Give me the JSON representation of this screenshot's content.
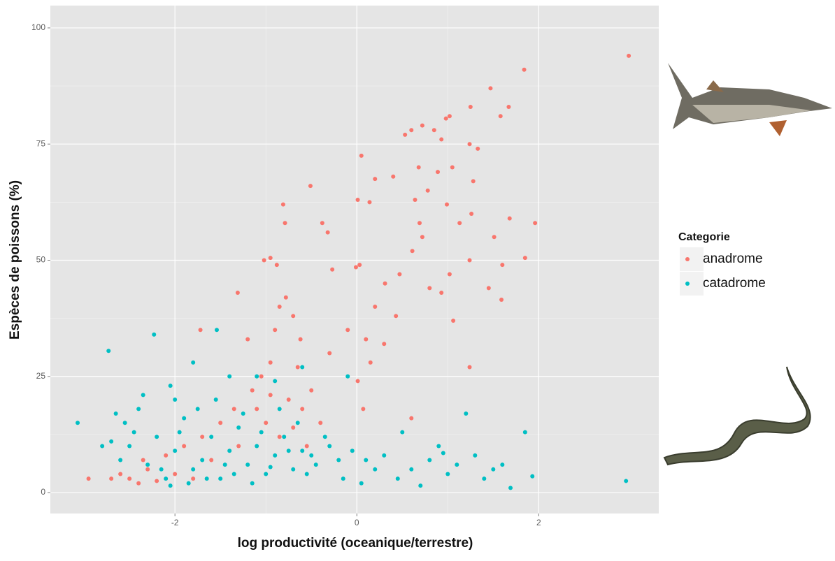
{
  "chart_data": {
    "type": "scatter",
    "x_label": "log productivité (oceanique/terrestre)",
    "y_label": "Espèces de poissons (%)",
    "legend_title": "Categorie",
    "legend_position": "right",
    "grid": true,
    "xlim": [
      -3.37,
      3.32
    ],
    "ylim": [
      -4.5,
      104.8
    ],
    "xticks": [
      -2,
      0,
      2
    ],
    "yticks": [
      0,
      25,
      50,
      75,
      100
    ],
    "series": [
      {
        "name": "anadrome",
        "color": "#F8766D",
        "x": [
          2.99,
          1.84,
          1.47,
          1.58,
          1.67,
          1.25,
          1.02,
          0.98,
          0.6,
          0.72,
          0.53,
          0.85,
          1.24,
          1.33,
          0.93,
          0.05,
          0.68,
          0.89,
          1.05,
          1.28,
          0.4,
          0.2,
          0.78,
          0.99,
          0.64,
          1.26,
          1.13,
          0.69,
          1.96,
          1.68,
          1.51,
          0.72,
          0.61,
          1.24,
          1.85,
          1.6,
          0.03,
          -0.01,
          -0.51,
          -0.81,
          -0.79,
          -0.38,
          -0.32,
          -0.95,
          -1.02,
          -0.88,
          -0.27,
          0.01,
          0.14,
          0.47,
          0.31,
          0.8,
          1.02,
          1.45,
          1.59,
          0.93,
          0.2,
          0.43,
          1.06,
          0.1,
          -0.1,
          -0.3,
          0.15,
          0.3,
          0.01,
          1.24,
          0.07,
          0.6,
          -0.62,
          -0.7,
          -0.78,
          -0.85,
          -0.9,
          -1.31,
          -1.2,
          -1.72,
          -0.95,
          -1.05,
          -1.15,
          -0.75,
          -0.6,
          -0.5,
          -1.35,
          -1.0,
          -0.85,
          -0.7,
          -1.5,
          -1.7,
          -1.9,
          -2.1,
          -2.3,
          -2.5,
          -2.6,
          -2.7,
          -2.95,
          -2.4,
          -2.2,
          -1.6,
          -1.3,
          -1.1,
          -0.95,
          -0.65,
          -0.55,
          -0.4,
          -2.0,
          -1.8,
          -2.35
        ],
        "y": [
          94,
          91,
          87,
          81,
          83,
          83,
          81,
          80.5,
          78,
          79,
          77,
          78,
          75,
          74,
          76,
          72.5,
          70,
          69,
          70,
          67,
          68,
          67.5,
          65,
          62,
          63,
          60,
          58,
          58,
          58,
          59,
          55,
          55,
          52,
          50,
          50.5,
          49,
          49,
          48.5,
          66,
          62,
          58,
          58,
          56,
          50.5,
          50,
          49,
          48,
          63,
          62.5,
          47,
          45,
          44,
          47,
          44,
          41.5,
          43,
          40,
          38,
          37,
          33,
          35,
          30,
          28,
          32,
          24,
          27,
          18,
          16,
          33,
          38,
          42,
          40,
          35,
          43,
          33,
          35,
          28,
          25,
          22,
          20,
          18,
          22,
          18,
          15,
          12,
          14,
          15,
          12,
          10,
          8,
          5,
          3,
          4,
          3,
          3,
          2,
          2.5,
          7,
          10,
          18,
          21,
          27,
          10,
          15,
          4,
          3,
          7
        ]
      },
      {
        "name": "catadrome",
        "color": "#00BFC4",
        "x": [
          -3.07,
          -2.73,
          -2.23,
          -1.54,
          -1.8,
          -2.05,
          -2.0,
          -1.4,
          -1.1,
          -0.6,
          -0.9,
          -0.1,
          1.2,
          1.85,
          2.96,
          1.93,
          1.69,
          1.5,
          1.3,
          1.1,
          0.9,
          0.8,
          0.6,
          0.45,
          0.3,
          0.2,
          0.05,
          -0.15,
          -0.2,
          -0.3,
          -0.45,
          -0.6,
          -0.7,
          -0.8,
          -0.9,
          -1.0,
          -1.1,
          -1.2,
          -1.3,
          -1.4,
          -1.5,
          -1.6,
          -1.7,
          -1.8,
          -1.9,
          -2.0,
          -2.1,
          -2.2,
          -2.3,
          -2.4,
          -2.5,
          -2.6,
          -2.7,
          -2.8,
          -2.35,
          -2.55,
          -1.95,
          -1.75,
          -1.55,
          -1.25,
          -1.05,
          -0.85,
          -0.65,
          -0.5,
          -0.35,
          -2.15,
          -1.85,
          -1.65,
          -1.45,
          -1.35,
          -2.05,
          -1.15,
          -0.95,
          -0.75,
          -0.55,
          1.0,
          0.7,
          1.4,
          0.95,
          1.6,
          0.5,
          -0.05,
          0.1,
          -2.65,
          -2.45
        ],
        "y": [
          15,
          30.5,
          34,
          35,
          28,
          23,
          20,
          25,
          25,
          27,
          24,
          25,
          17,
          13,
          2.5,
          3.5,
          1,
          5,
          8,
          6,
          10,
          7,
          5,
          3,
          8,
          5,
          2,
          3,
          7,
          10,
          6,
          9,
          5,
          12,
          8,
          4,
          10,
          6,
          14,
          9,
          3,
          12,
          7,
          5,
          16,
          9,
          3,
          12,
          6,
          18,
          10,
          7,
          11,
          10,
          21,
          15,
          13,
          18,
          20,
          17,
          13,
          18,
          15,
          8,
          12,
          5,
          2,
          3,
          6,
          4,
          1.5,
          2,
          5.5,
          9,
          4,
          4,
          1.5,
          3,
          8.5,
          6,
          13,
          9,
          7,
          17,
          13
        ]
      }
    ]
  }
}
